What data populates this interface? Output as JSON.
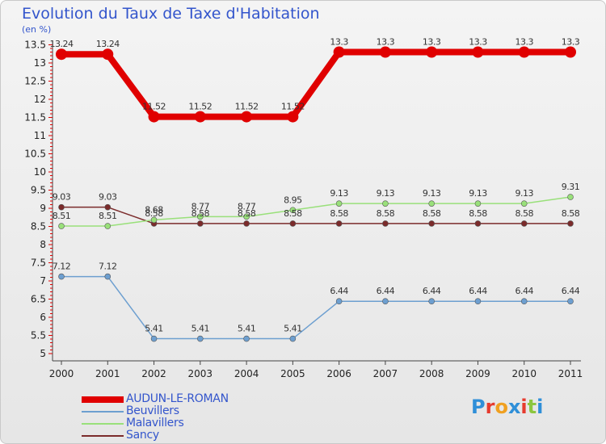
{
  "title": "Evolution du Taux de Taxe d'Habitation",
  "subtitle": "(en %)",
  "logo": [
    "P",
    "r",
    "o",
    "x",
    "i",
    "t",
    "i"
  ],
  "logo_colors": [
    "#2f8fd8",
    "#e63b2e",
    "#f0a020",
    "#2f8fd8",
    "#e63b2e",
    "#8cc63f",
    "#2f8fd8"
  ],
  "chart_data": {
    "type": "line",
    "title": "Evolution du Taux de Taxe d'Habitation",
    "ylabel": "(en %)",
    "xlabel": "",
    "categories": [
      "2000",
      "2001",
      "2002",
      "2003",
      "2004",
      "2005",
      "2006",
      "2007",
      "2008",
      "2009",
      "2010",
      "2011"
    ],
    "ylim": [
      4.8,
      13.6
    ],
    "yticks": [
      "5",
      "5.5",
      "6",
      "6.5",
      "7",
      "7.5",
      "8",
      "8.5",
      "9",
      "9.5",
      "10",
      "10.5",
      "11",
      "11.5",
      "12",
      "12.5",
      "13",
      "13.5"
    ],
    "grid": false,
    "legend_position": "bottom-left",
    "series": [
      {
        "name": "AUDUN-LE-ROMAN",
        "color": "#e00000",
        "values": [
          13.24,
          13.24,
          11.52,
          11.52,
          11.52,
          11.52,
          13.3,
          13.3,
          13.3,
          13.3,
          13.3,
          13.3
        ],
        "labels": [
          "13.24",
          "13.24",
          "11.52",
          "11.52",
          "11.52",
          "11.52",
          "13.3",
          "13.3",
          "13.3",
          "13.3",
          "13.3",
          "13.3"
        ]
      },
      {
        "name": "Beuvillers",
        "color": "#6d9fd0",
        "values": [
          7.12,
          7.12,
          5.41,
          5.41,
          5.41,
          5.41,
          6.44,
          6.44,
          6.44,
          6.44,
          6.44,
          6.44
        ],
        "labels": [
          "7.12",
          "7.12",
          "5.41",
          "5.41",
          "5.41",
          "5.41",
          "6.44",
          "6.44",
          "6.44",
          "6.44",
          "6.44",
          "6.44"
        ]
      },
      {
        "name": "Malavillers",
        "color": "#99e07a",
        "values": [
          8.51,
          8.51,
          8.68,
          8.77,
          8.77,
          8.95,
          9.13,
          9.13,
          9.13,
          9.13,
          9.13,
          9.31
        ],
        "labels": [
          "8.51",
          "8.51",
          "8.68",
          "8.77",
          "8.77",
          "8.95",
          "9.13",
          "9.13",
          "9.13",
          "9.13",
          "9.13",
          "9.31"
        ]
      },
      {
        "name": "Sancy",
        "color": "#7b2b2b",
        "values": [
          9.03,
          9.03,
          8.58,
          8.58,
          8.58,
          8.58,
          8.58,
          8.58,
          8.58,
          8.58,
          8.58,
          8.58
        ],
        "labels": [
          "9.03",
          "9.03",
          "8.58",
          "8.58",
          "8.58",
          "8.58",
          "8.58",
          "8.58",
          "8.58",
          "8.58",
          "8.58",
          "8.58"
        ]
      }
    ]
  }
}
